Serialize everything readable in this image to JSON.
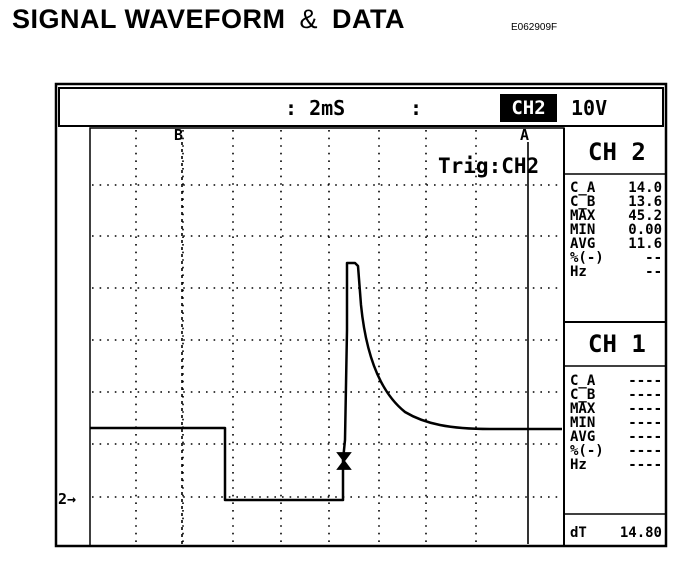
{
  "header": {
    "title_part1": "SIGNAL WAVEFORM",
    "title_amp": "&",
    "title_part2": "DATA",
    "figure_code": "E062909F"
  },
  "scope": {
    "timebase": ": 2mS",
    "separator": ":",
    "channel_selected": "CH2",
    "volts_per_div": "10V",
    "trigger_label": "Trig:CH2",
    "cursor_a_label": "A",
    "cursor_b_label": "B",
    "ground_marker": "2→"
  },
  "ch2_panel": {
    "title": "CH 2",
    "rows": [
      {
        "label": "C_A",
        "value": "14.0"
      },
      {
        "label": "C_B",
        "value": "13.6"
      },
      {
        "label": "MAX",
        "value": "45.2"
      },
      {
        "label": "MIN",
        "value": "0.00"
      },
      {
        "label": "AVG",
        "value": "11.6"
      },
      {
        "label": "%(-)",
        "value": "--"
      },
      {
        "label": "Hz",
        "value": "--"
      }
    ]
  },
  "ch1_panel": {
    "title": "CH 1",
    "rows": [
      {
        "label": "C_A",
        "value": "----"
      },
      {
        "label": "C_B",
        "value": "----"
      },
      {
        "label": "MAX",
        "value": "----"
      },
      {
        "label": "MIN",
        "value": "----"
      },
      {
        "label": "AVG",
        "value": "----"
      },
      {
        "label": "%(-)",
        "value": "----"
      },
      {
        "label": "Hz",
        "value": "----"
      }
    ]
  },
  "dt_readout": {
    "label": "dT",
    "value": "14.80"
  }
}
